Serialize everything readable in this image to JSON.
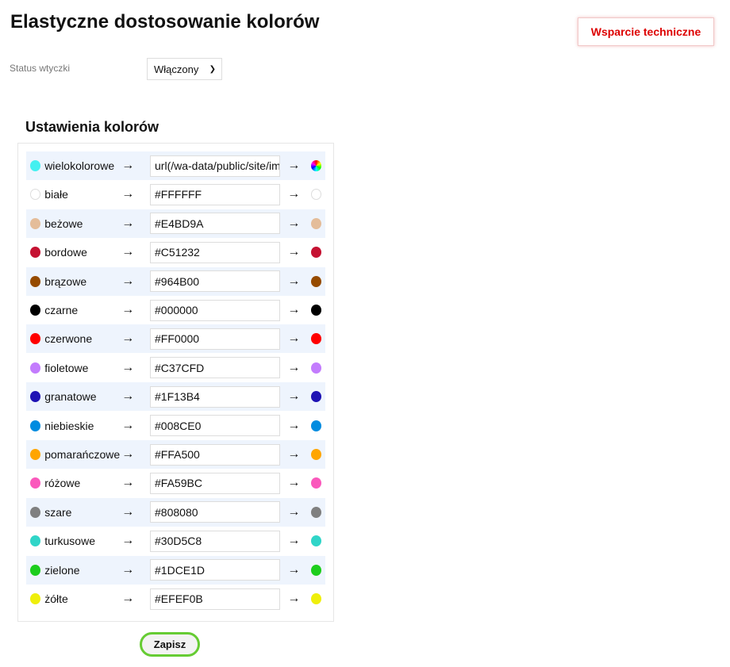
{
  "title": "Elastyczne dostosowanie kolorów",
  "support_label": "Wsparcie techniczne",
  "status": {
    "label": "Status wtyczki",
    "value": "Włączony"
  },
  "section_title": "Ustawienia kolorów",
  "arrow": "→",
  "colors": [
    {
      "name": "wielokolorowe",
      "value": "url(/wa-data/public/site/img/",
      "dot": "#44f0f0",
      "preview": "multicolor"
    },
    {
      "name": "białe",
      "value": "#FFFFFF",
      "dot": "#FFFFFF",
      "preview": "#FFFFFF"
    },
    {
      "name": "beżowe",
      "value": "#E4BD9A",
      "dot": "#E4BD9A",
      "preview": "#E4BD9A"
    },
    {
      "name": "bordowe",
      "value": "#C51232",
      "dot": "#C51232",
      "preview": "#C51232"
    },
    {
      "name": "brązowe",
      "value": "#964B00",
      "dot": "#964B00",
      "preview": "#964B00"
    },
    {
      "name": "czarne",
      "value": "#000000",
      "dot": "#000000",
      "preview": "#000000"
    },
    {
      "name": "czerwone",
      "value": "#FF0000",
      "dot": "#FF0000",
      "preview": "#FF0000"
    },
    {
      "name": "fioletowe",
      "value": "#C37CFD",
      "dot": "#C37CFD",
      "preview": "#C37CFD"
    },
    {
      "name": "granatowe",
      "value": "#1F13B4",
      "dot": "#1F13B4",
      "preview": "#1F13B4"
    },
    {
      "name": "niebieskie",
      "value": "#008CE0",
      "dot": "#008CE0",
      "preview": "#008CE0"
    },
    {
      "name": "pomarańczowe",
      "value": "#FFA500",
      "dot": "#FFA500",
      "preview": "#FFA500"
    },
    {
      "name": "różowe",
      "value": "#FA59BC",
      "dot": "#FA59BC",
      "preview": "#FA59BC"
    },
    {
      "name": "szare",
      "value": "#808080",
      "dot": "#808080",
      "preview": "#808080"
    },
    {
      "name": "turkusowe",
      "value": "#30D5C8",
      "dot": "#30D5C8",
      "preview": "#30D5C8"
    },
    {
      "name": "zielone",
      "value": "#1DCE1D",
      "dot": "#1DCE1D",
      "preview": "#1DCE1D"
    },
    {
      "name": "żółte",
      "value": "#EFEF0B",
      "dot": "#EFEF0B",
      "preview": "#EFEF0B"
    }
  ],
  "save_label": "Zapisz"
}
